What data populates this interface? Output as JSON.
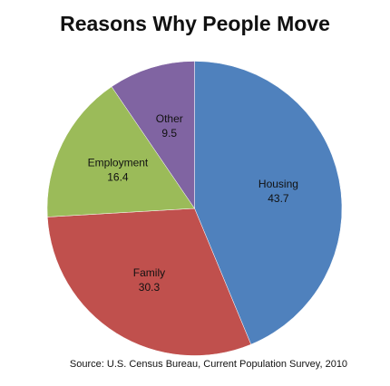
{
  "chart_data": {
    "type": "pie",
    "title": "Reasons Why People Move",
    "categories": [
      "Housing",
      "Family",
      "Employment",
      "Other"
    ],
    "values": [
      43.7,
      30.3,
      16.4,
      9.5
    ],
    "colors": [
      "#4f81bd",
      "#c0504d",
      "#9bbb59",
      "#8064a2"
    ],
    "source": "Source: U.S. Census Bureau,  Current Population Survey, 2010"
  }
}
